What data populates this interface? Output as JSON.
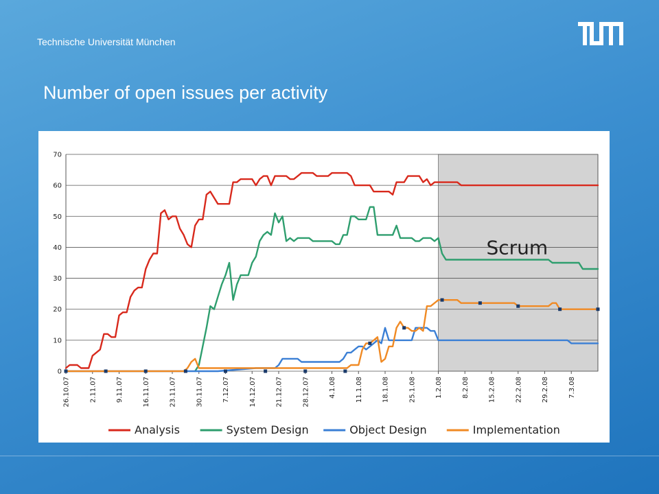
{
  "header": {
    "institution": "Technische Universität München",
    "logo_name": "tum-logo"
  },
  "slide": {
    "title": "Number of open issues per activity"
  },
  "chart_data": {
    "type": "line",
    "title": "",
    "xlabel": "",
    "ylabel": "",
    "ylim": [
      0,
      70
    ],
    "yticks": [
      0,
      10,
      20,
      30,
      40,
      50,
      60,
      70
    ],
    "grid": true,
    "legend": "bottom",
    "x_tick_labels": [
      "26.10.07",
      "2.11.07",
      "9.11.07",
      "16.11.07",
      "23.11.07",
      "30.11.07",
      "7.12.07",
      "14.12.07",
      "21.12.07",
      "28.12.07",
      "4.1.08",
      "11.1.08",
      "18.1.08",
      "25.1.08",
      "1.2.08",
      "8.2.08",
      "15.2.08",
      "22.2.08",
      "29.2.08",
      "7.3.08"
    ],
    "annotation": {
      "text": "Scrum",
      "region_start": "1.2.08"
    },
    "series": [
      {
        "name": "Analysis",
        "color": "#d8291c",
        "x": [
          0,
          1,
          2,
          3,
          4,
          5,
          6,
          7,
          8,
          9,
          10,
          11,
          12,
          13,
          14,
          15,
          16,
          17,
          18,
          19,
          20,
          21,
          22,
          23,
          24,
          25,
          26,
          27,
          28,
          29,
          30,
          31,
          32,
          33,
          34,
          35,
          36,
          37,
          38,
          39,
          40,
          41,
          42,
          43,
          44,
          45,
          46,
          47,
          48,
          49,
          50,
          51,
          52,
          53,
          54,
          55,
          56,
          57,
          58,
          59,
          60,
          61,
          62,
          63,
          64,
          65,
          66,
          67,
          68,
          69,
          70,
          71,
          72,
          73,
          74,
          75,
          76,
          77,
          78,
          79,
          80,
          81,
          82,
          83,
          84,
          85,
          86,
          87,
          88,
          89,
          90,
          91,
          92,
          93,
          94,
          95,
          96,
          97,
          98,
          99,
          100,
          101,
          102,
          103,
          104,
          105,
          106,
          107,
          108,
          109,
          110,
          111,
          112,
          113,
          114,
          115,
          116,
          117,
          118,
          119,
          120,
          121,
          122,
          123,
          124,
          125,
          126,
          127,
          128,
          129,
          130,
          131,
          132,
          133,
          134,
          135,
          136,
          137,
          138,
          139,
          140
        ],
        "y": [
          1,
          2,
          2,
          2,
          1,
          1,
          1,
          5,
          6,
          7,
          12,
          12,
          11,
          11,
          18,
          19,
          19,
          24,
          26,
          27,
          27,
          33,
          36,
          38,
          38,
          51,
          52,
          49,
          50,
          50,
          46,
          44,
          41,
          40,
          47,
          49,
          49,
          57,
          58,
          56,
          54,
          54,
          54,
          54,
          61,
          61,
          62,
          62,
          62,
          62,
          60,
          62,
          63,
          63,
          60,
          63,
          63,
          63,
          63,
          62,
          62,
          63,
          64,
          64,
          64,
          64,
          63,
          63,
          63,
          63,
          64,
          64,
          64,
          64,
          64,
          63,
          60,
          60,
          60,
          60,
          60,
          58,
          58,
          58,
          58,
          58,
          57,
          61,
          61,
          61,
          63,
          63,
          63,
          63,
          61,
          62,
          60,
          61,
          61,
          61,
          61,
          61,
          61,
          61,
          60,
          60,
          60,
          60,
          60,
          60,
          60,
          60,
          60,
          60,
          60,
          60,
          60,
          60,
          60,
          60,
          60,
          60,
          60,
          60,
          60,
          60,
          60,
          60,
          60,
          60,
          60,
          60,
          60,
          60,
          60,
          60,
          60,
          60,
          60,
          60,
          60
        ]
      },
      {
        "name": "System Design",
        "color": "#2e9e6e",
        "x": [
          34,
          35,
          36,
          37,
          38,
          39,
          40,
          41,
          42,
          43,
          44,
          45,
          46,
          47,
          48,
          49,
          50,
          51,
          52,
          53,
          54,
          55,
          56,
          57,
          58,
          59,
          60,
          61,
          62,
          63,
          64,
          65,
          66,
          67,
          68,
          69,
          70,
          71,
          72,
          73,
          74,
          75,
          76,
          77,
          78,
          79,
          80,
          81,
          82,
          83,
          84,
          85,
          86,
          87,
          88,
          89,
          90,
          91,
          92,
          93,
          94,
          95,
          96,
          97,
          98,
          99,
          100,
          101,
          102,
          103,
          104,
          105,
          106,
          107,
          108,
          109,
          110,
          111,
          112,
          113,
          114,
          115,
          116,
          117,
          118,
          119,
          120,
          121,
          122,
          123,
          124,
          125,
          126,
          127,
          128,
          129,
          130,
          131,
          132,
          133,
          134,
          135,
          136,
          137,
          138,
          139,
          140
        ],
        "y": [
          0,
          2,
          8,
          14,
          21,
          20,
          24,
          28,
          31,
          35,
          23,
          28,
          31,
          31,
          31,
          35,
          37,
          42,
          44,
          45,
          44,
          51,
          48,
          50,
          42,
          43,
          42,
          43,
          43,
          43,
          43,
          42,
          42,
          42,
          42,
          42,
          42,
          41,
          41,
          44,
          44,
          50,
          50,
          49,
          49,
          49,
          53,
          53,
          44,
          44,
          44,
          44,
          44,
          47,
          43,
          43,
          43,
          43,
          42,
          42,
          43,
          43,
          43,
          42,
          43,
          38,
          36,
          36,
          36,
          36,
          36,
          36,
          36,
          36,
          36,
          36,
          36,
          36,
          36,
          36,
          36,
          36,
          36,
          36,
          36,
          36,
          36,
          36,
          36,
          36,
          36,
          36,
          36,
          36,
          35,
          35,
          35,
          35,
          35,
          35,
          35,
          35,
          33,
          33,
          33,
          33,
          33
        ]
      },
      {
        "name": "Object Design",
        "color": "#3a7fd5",
        "x": [
          0,
          10,
          20,
          30,
          40,
          50,
          55,
          56,
          57,
          58,
          59,
          60,
          61,
          62,
          63,
          64,
          65,
          66,
          67,
          68,
          69,
          70,
          71,
          72,
          73,
          74,
          75,
          76,
          77,
          78,
          79,
          80,
          81,
          82,
          83,
          84,
          85,
          86,
          87,
          88,
          89,
          90,
          91,
          92,
          93,
          94,
          95,
          96,
          97,
          98,
          99,
          100,
          110,
          120,
          130,
          131,
          132,
          133,
          134,
          135,
          136,
          137,
          138,
          139,
          140
        ],
        "y": [
          0,
          0,
          0,
          0,
          0,
          1,
          1,
          2,
          4,
          4,
          4,
          4,
          4,
          3,
          3,
          3,
          3,
          3,
          3,
          3,
          3,
          3,
          3,
          3,
          4,
          6,
          6,
          7,
          8,
          8,
          7,
          8,
          9,
          10,
          9,
          14,
          10,
          10,
          10,
          10,
          10,
          10,
          10,
          14,
          14,
          14,
          14,
          13,
          13,
          10,
          10,
          10,
          10,
          10,
          10,
          10,
          10,
          9,
          9,
          9,
          9,
          9,
          9,
          9,
          9
        ]
      },
      {
        "name": "Implementation",
        "color": "#f08a24",
        "x": [
          0,
          10,
          20,
          30,
          31,
          32,
          33,
          34,
          35,
          36,
          40,
          50,
          60,
          70,
          72,
          74,
          75,
          76,
          77,
          78,
          79,
          80,
          81,
          82,
          83,
          84,
          85,
          86,
          87,
          88,
          89,
          90,
          91,
          92,
          93,
          94,
          95,
          96,
          97,
          98,
          99,
          100,
          101,
          102,
          103,
          104,
          105,
          106,
          107,
          108,
          109,
          110,
          111,
          112,
          113,
          114,
          115,
          116,
          117,
          118,
          119,
          120,
          121,
          122,
          123,
          124,
          125,
          126,
          127,
          128,
          129,
          130,
          131,
          132,
          133,
          134,
          135,
          136,
          137,
          138,
          139,
          140
        ],
        "y": [
          0,
          0,
          0,
          0,
          0,
          1,
          3,
          4,
          1,
          1,
          1,
          1,
          1,
          1,
          1,
          1,
          2,
          2,
          2,
          7,
          9,
          9,
          10,
          11,
          3,
          4,
          8,
          8,
          14,
          16,
          14,
          14,
          13,
          13,
          14,
          13,
          21,
          21,
          22,
          23,
          23,
          23,
          23,
          23,
          23,
          22,
          22,
          22,
          22,
          22,
          22,
          22,
          22,
          22,
          22,
          22,
          22,
          22,
          22,
          22,
          21,
          21,
          21,
          21,
          21,
          21,
          21,
          21,
          21,
          22,
          22,
          20,
          20,
          20,
          20,
          20,
          20,
          20,
          20,
          20,
          20,
          20
        ]
      }
    ]
  }
}
